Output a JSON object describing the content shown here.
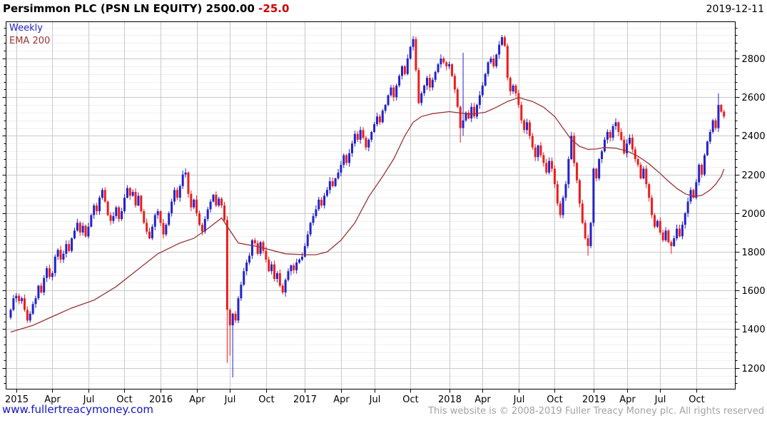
{
  "header": {
    "instrument": "Persimmon PLC (PSN LN EQUITY)",
    "price": "2500.00",
    "change": "-25.0",
    "date": "2019-12-11"
  },
  "legend": {
    "timeframe": "Weekly",
    "overlay": "EMA 200"
  },
  "footer": {
    "website": "www.fullertreacymoney.com",
    "copyright": "This website is © 2008-2019 Fuller Treacy Money plc. All rights reserved"
  },
  "chart_data": {
    "type": "candlestick",
    "timeframe": "weekly",
    "title": "Persimmon PLC (PSN LN EQUITY)",
    "last_price": 2500.0,
    "change": -25.0,
    "date": "2019-12-11",
    "start_week": "2014-12-15",
    "ylim": [
      1090,
      2990
    ],
    "y_ticks": [
      1200,
      1400,
      1600,
      1800,
      2000,
      2200,
      2400,
      2600,
      2800
    ],
    "y_minor_step": 40,
    "x_tick_labels": [
      "2015",
      "Apr",
      "Jul",
      "Oct",
      "2016",
      "Apr",
      "Jul",
      "Oct",
      "2017",
      "Apr",
      "Jul",
      "Oct",
      "2018",
      "Apr",
      "Jul",
      "Oct",
      "2019",
      "Apr",
      "Jul",
      "Oct"
    ],
    "x_tick_week_indices": [
      2,
      15,
      28,
      41,
      54,
      67,
      79,
      92,
      106,
      119,
      131,
      144,
      158,
      170,
      183,
      196,
      210,
      222,
      234,
      247
    ],
    "first_open": 1460,
    "weekly_closes": [
      1500,
      1560,
      1573,
      1545,
      1560,
      1500,
      1445,
      1480,
      1530,
      1560,
      1625,
      1590,
      1665,
      1715,
      1670,
      1690,
      1775,
      1810,
      1760,
      1790,
      1840,
      1805,
      1870,
      1910,
      1950,
      1900,
      1935,
      1880,
      1930,
      1990,
      2040,
      2010,
      2080,
      2120,
      2060,
      1990,
      1960,
      1985,
      2030,
      1970,
      2010,
      2080,
      2130,
      2090,
      2110,
      2040,
      2090,
      2010,
      1950,
      1905,
      1870,
      1930,
      1990,
      2010,
      1950,
      1890,
      1940,
      2000,
      2060,
      2120,
      2080,
      2140,
      2200,
      2210,
      2100,
      2030,
      2070,
      2000,
      1940,
      1905,
      1970,
      2020,
      2060,
      2095,
      2040,
      2075,
      2040,
      1965,
      1500,
      1420,
      1480,
      1445,
      1560,
      1630,
      1700,
      1745,
      1780,
      1860,
      1845,
      1790,
      1850,
      1805,
      1760,
      1700,
      1735,
      1660,
      1690,
      1625,
      1590,
      1655,
      1700,
      1730,
      1705,
      1745,
      1760,
      1775,
      1830,
      1890,
      1950,
      1985,
      2020,
      2070,
      2040,
      2090,
      2120,
      2165,
      2140,
      2180,
      2210,
      2250,
      2300,
      2260,
      2310,
      2360,
      2410,
      2380,
      2430,
      2390,
      2340,
      2380,
      2420,
      2460,
      2500,
      2470,
      2530,
      2560,
      2610,
      2650,
      2600,
      2660,
      2710,
      2760,
      2720,
      2800,
      2860,
      2900,
      2740,
      2570,
      2620,
      2660,
      2700,
      2650,
      2690,
      2730,
      2770,
      2800,
      2780,
      2760,
      2770,
      2710,
      2640,
      2550,
      2440,
      2480,
      2520,
      2490,
      2550,
      2500,
      2560,
      2610,
      2660,
      2720,
      2780,
      2800,
      2760,
      2820,
      2871,
      2910,
      2865,
      2700,
      2630,
      2660,
      2620,
      2560,
      2480,
      2430,
      2470,
      2400,
      2340,
      2290,
      2350,
      2300,
      2260,
      2210,
      2270,
      2230,
      2150,
      2050,
      1990,
      2080,
      2150,
      2280,
      2400,
      2260,
      2170,
      2050,
      1950,
      1870,
      1830,
      1950,
      2230,
      2180,
      2280,
      2320,
      2380,
      2420,
      2390,
      2450,
      2470,
      2420,
      2380,
      2310,
      2360,
      2390,
      2330,
      2280,
      2250,
      2180,
      2230,
      2150,
      2080,
      1990,
      1930,
      1960,
      1900,
      1860,
      1910,
      1850,
      1830,
      1870,
      1920,
      1880,
      1940,
      2000,
      2060,
      2120,
      2080,
      2160,
      2250,
      2200,
      2300,
      2370,
      2420,
      2480,
      2440,
      2560,
      2525,
      2500
    ],
    "wick_overrides": {
      "78": {
        "low": 1226
      },
      "79": {
        "low": 1263
      },
      "80": {
        "low": 1151
      },
      "145": {
        "high": 2915
      },
      "162": {
        "low": 2365
      },
      "163": {
        "high": 2830,
        "low": 2400
      },
      "177": {
        "high": 2922
      },
      "208": {
        "low": 1780
      },
      "238": {
        "low": 1790
      },
      "255": {
        "high": 2620
      }
    },
    "ema": {
      "label": "EMA 200",
      "anchors": [
        [
          0,
          1385
        ],
        [
          8,
          1420
        ],
        [
          15,
          1465
        ],
        [
          22,
          1510
        ],
        [
          30,
          1550
        ],
        [
          38,
          1620
        ],
        [
          45,
          1700
        ],
        [
          53,
          1790
        ],
        [
          61,
          1846
        ],
        [
          66,
          1870
        ],
        [
          71,
          1920
        ],
        [
          76,
          1975
        ],
        [
          82,
          1846
        ],
        [
          89,
          1827
        ],
        [
          99,
          1790
        ],
        [
          106,
          1785
        ],
        [
          110,
          1785
        ],
        [
          114,
          1800
        ],
        [
          119,
          1860
        ],
        [
          124,
          1950
        ],
        [
          129,
          2085
        ],
        [
          134,
          2190
        ],
        [
          138,
          2280
        ],
        [
          142,
          2400
        ],
        [
          145,
          2470
        ],
        [
          148,
          2500
        ],
        [
          152,
          2515
        ],
        [
          158,
          2525
        ],
        [
          162,
          2518
        ],
        [
          166,
          2512
        ],
        [
          171,
          2522
        ],
        [
          175,
          2548
        ],
        [
          179,
          2578
        ],
        [
          183,
          2598
        ],
        [
          188,
          2578
        ],
        [
          192,
          2548
        ],
        [
          196,
          2500
        ],
        [
          199,
          2440
        ],
        [
          202,
          2380
        ],
        [
          205,
          2345
        ],
        [
          208,
          2330
        ],
        [
          211,
          2332
        ],
        [
          214,
          2340
        ],
        [
          218,
          2336
        ],
        [
          222,
          2322
        ],
        [
          226,
          2295
        ],
        [
          230,
          2255
        ],
        [
          234,
          2205
        ],
        [
          237,
          2165
        ],
        [
          240,
          2128
        ],
        [
          243,
          2100
        ],
        [
          246,
          2086
        ],
        [
          249,
          2092
        ],
        [
          252,
          2120
        ],
        [
          254,
          2150
        ],
        [
          256,
          2190
        ],
        [
          257,
          2228
        ]
      ]
    },
    "legend_position": "top-left",
    "grid": true,
    "colors": {
      "up": "#2222cc",
      "down": "#ee1c1c",
      "ema": "#993333",
      "grid_major": "#c9c9c9",
      "grid_minor": "#f0f0f0",
      "border": "#000000",
      "change": "#cc0000",
      "link": "#1414cc",
      "muted": "#a3a3a3"
    }
  }
}
